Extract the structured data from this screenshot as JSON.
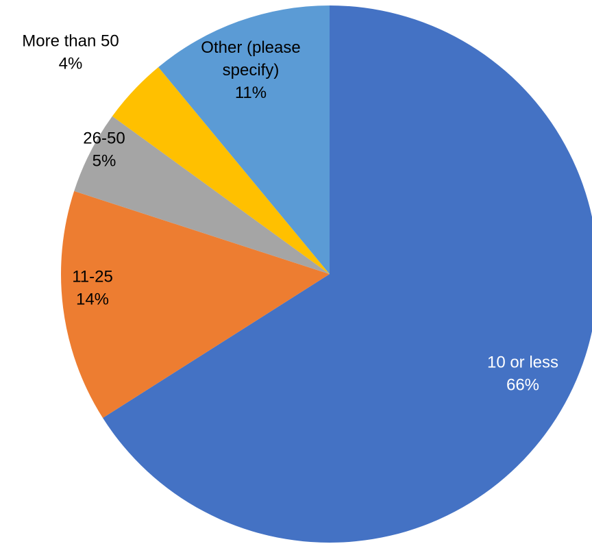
{
  "chart_data": {
    "type": "pie",
    "title": "",
    "direction": "clockwise",
    "start_angle_deg": 0,
    "slices": [
      {
        "label": "10 or less",
        "value": 66,
        "value_label": "66%",
        "color": "#4472C4",
        "label_color": "#FFFFFF"
      },
      {
        "label": "11-25",
        "value": 14,
        "value_label": "14%",
        "color": "#ED7D31",
        "label_color": "#000000"
      },
      {
        "label": "26-50",
        "value": 5,
        "value_label": "5%",
        "color": "#A5A5A5",
        "label_color": "#000000"
      },
      {
        "label": "More than 50",
        "value": 4,
        "value_label": "4%",
        "color": "#FFC000",
        "label_color": "#000000"
      },
      {
        "label": "Other (please specify)",
        "value": 11,
        "value_label": "11%",
        "color": "#5B9BD5",
        "label_color": "#000000"
      }
    ]
  }
}
